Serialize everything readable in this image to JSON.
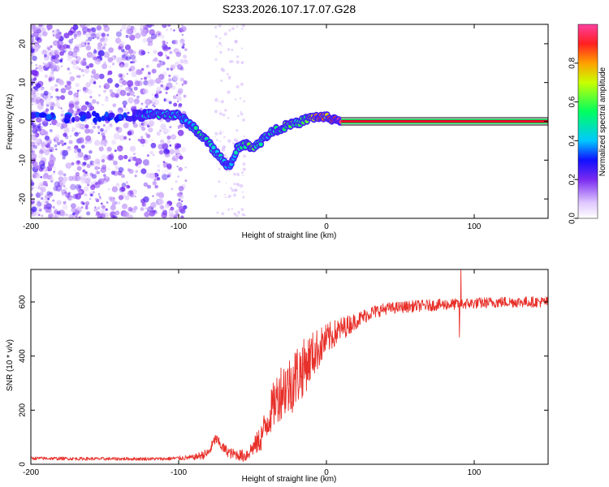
{
  "title": "S233.2026.107.17.07.G28",
  "colors": {
    "snr_line": "#e8302a",
    "spec_track_core": "#e8002a",
    "spec_track_edge": "#00cc44",
    "spec_noise": "#7a2bf0",
    "frame": "#000000"
  },
  "chart_data": [
    {
      "type": "heatmap",
      "name": "spectrogram",
      "xlabel": "Height of straight line (km)",
      "ylabel": "Frequency (Hz)",
      "xlim": [
        -200,
        150
      ],
      "ylim": [
        -25,
        25
      ],
      "xticks": [
        -200,
        -100,
        0,
        100
      ],
      "yticks": [
        -20,
        -10,
        0,
        10,
        20
      ],
      "colorbar": {
        "label": "Normalized spectral amplitude",
        "range": [
          0.0,
          1.0
        ],
        "ticks": [
          0.0,
          0.2,
          0.4,
          0.6,
          0.8
        ]
      },
      "track": {
        "x": [
          -130,
          -120,
          -110,
          -100,
          -95,
          -90,
          -85,
          -80,
          -75,
          -70,
          -65,
          -60,
          -55,
          -50,
          -45,
          -40,
          -35,
          -30,
          -25,
          -20,
          -15,
          -10,
          -5,
          0,
          5,
          10
        ],
        "y": [
          1.5,
          1.8,
          2.0,
          1.5,
          0.0,
          -1.5,
          -3.5,
          -5.5,
          -8.0,
          -10.0,
          -12.0,
          -6.5,
          -6.0,
          -6.5,
          -5.5,
          -3.5,
          -2.5,
          -1.5,
          -1.0,
          -0.5,
          0.3,
          1.0,
          1.2,
          1.0,
          0.6,
          0.3
        ],
        "amplitude": [
          0.3,
          0.4,
          0.45,
          0.4,
          0.35,
          0.45,
          0.5,
          0.55,
          0.5,
          0.4,
          0.35,
          0.5,
          0.55,
          0.6,
          0.5,
          0.45,
          0.5,
          0.55,
          0.6,
          0.5,
          0.55,
          0.7,
          0.85,
          0.75,
          0.9,
          0.95
        ]
      },
      "steady_line": {
        "x_start": 10,
        "x_end": 150,
        "frequency": 0.0,
        "amplitude": 1.0
      },
      "noise_region": {
        "x_range": [
          -200,
          -95
        ],
        "frequency_range": [
          -25,
          25
        ],
        "amplitude_range": [
          0.05,
          0.25
        ]
      }
    },
    {
      "type": "line",
      "name": "snr",
      "xlabel": "Height of straight line (km)",
      "ylabel": "SNR (10 * v/v)",
      "xlim": [
        -200,
        150
      ],
      "ylim": [
        0,
        720
      ],
      "xticks": [
        -200,
        -100,
        0,
        100
      ],
      "yticks": [
        0,
        200,
        400,
        600
      ],
      "trend": {
        "x": [
          -200,
          -150,
          -110,
          -90,
          -80,
          -75,
          -70,
          -65,
          -55,
          -50,
          -45,
          -40,
          -35,
          -30,
          -25,
          -20,
          -15,
          -10,
          -5,
          0,
          10,
          20,
          30,
          40,
          60,
          80,
          100,
          120,
          150
        ],
        "y": [
          22,
          20,
          20,
          25,
          40,
          95,
          60,
          40,
          30,
          60,
          90,
          160,
          230,
          280,
          290,
          330,
          360,
          400,
          430,
          460,
          500,
          530,
          560,
          575,
          585,
          590,
          595,
          600,
          600
        ]
      },
      "noise_amplitude": {
        "x": [
          -200,
          -110,
          -90,
          -80,
          -60,
          -50,
          -40,
          -30,
          -20,
          -10,
          0,
          20,
          40,
          150
        ],
        "y": [
          6,
          6,
          10,
          20,
          20,
          30,
          70,
          110,
          120,
          90,
          60,
          30,
          22,
          20
        ]
      },
      "spikes": [
        {
          "x": 91,
          "y": 720
        },
        {
          "x": 90,
          "y": 470
        }
      ]
    }
  ]
}
